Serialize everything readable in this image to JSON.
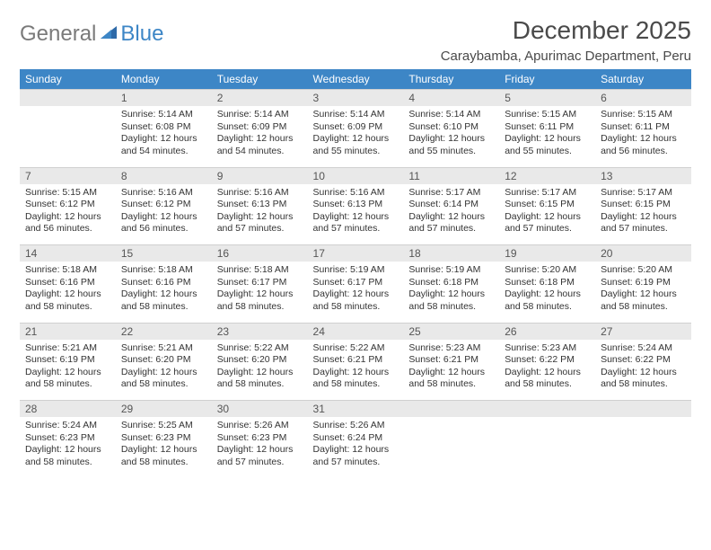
{
  "logo": {
    "general": "General",
    "blue": "Blue"
  },
  "title": "December 2025",
  "location": "Caraybamba, Apurimac Department, Peru",
  "day_headers": [
    "Sunday",
    "Monday",
    "Tuesday",
    "Wednesday",
    "Thursday",
    "Friday",
    "Saturday"
  ],
  "colors": {
    "header_bg": "#3d86c6",
    "header_fg": "#ffffff",
    "daynum_bg": "#e9e9e9",
    "text": "#333333",
    "logo_gray": "#7a7a7a",
    "logo_blue": "#3d86c6"
  },
  "weeks": [
    [
      {
        "n": "",
        "sr": "",
        "ss": "",
        "dl1": "",
        "dl2": ""
      },
      {
        "n": "1",
        "sr": "Sunrise: 5:14 AM",
        "ss": "Sunset: 6:08 PM",
        "dl1": "Daylight: 12 hours",
        "dl2": "and 54 minutes."
      },
      {
        "n": "2",
        "sr": "Sunrise: 5:14 AM",
        "ss": "Sunset: 6:09 PM",
        "dl1": "Daylight: 12 hours",
        "dl2": "and 54 minutes."
      },
      {
        "n": "3",
        "sr": "Sunrise: 5:14 AM",
        "ss": "Sunset: 6:09 PM",
        "dl1": "Daylight: 12 hours",
        "dl2": "and 55 minutes."
      },
      {
        "n": "4",
        "sr": "Sunrise: 5:14 AM",
        "ss": "Sunset: 6:10 PM",
        "dl1": "Daylight: 12 hours",
        "dl2": "and 55 minutes."
      },
      {
        "n": "5",
        "sr": "Sunrise: 5:15 AM",
        "ss": "Sunset: 6:11 PM",
        "dl1": "Daylight: 12 hours",
        "dl2": "and 55 minutes."
      },
      {
        "n": "6",
        "sr": "Sunrise: 5:15 AM",
        "ss": "Sunset: 6:11 PM",
        "dl1": "Daylight: 12 hours",
        "dl2": "and 56 minutes."
      }
    ],
    [
      {
        "n": "7",
        "sr": "Sunrise: 5:15 AM",
        "ss": "Sunset: 6:12 PM",
        "dl1": "Daylight: 12 hours",
        "dl2": "and 56 minutes."
      },
      {
        "n": "8",
        "sr": "Sunrise: 5:16 AM",
        "ss": "Sunset: 6:12 PM",
        "dl1": "Daylight: 12 hours",
        "dl2": "and 56 minutes."
      },
      {
        "n": "9",
        "sr": "Sunrise: 5:16 AM",
        "ss": "Sunset: 6:13 PM",
        "dl1": "Daylight: 12 hours",
        "dl2": "and 57 minutes."
      },
      {
        "n": "10",
        "sr": "Sunrise: 5:16 AM",
        "ss": "Sunset: 6:13 PM",
        "dl1": "Daylight: 12 hours",
        "dl2": "and 57 minutes."
      },
      {
        "n": "11",
        "sr": "Sunrise: 5:17 AM",
        "ss": "Sunset: 6:14 PM",
        "dl1": "Daylight: 12 hours",
        "dl2": "and 57 minutes."
      },
      {
        "n": "12",
        "sr": "Sunrise: 5:17 AM",
        "ss": "Sunset: 6:15 PM",
        "dl1": "Daylight: 12 hours",
        "dl2": "and 57 minutes."
      },
      {
        "n": "13",
        "sr": "Sunrise: 5:17 AM",
        "ss": "Sunset: 6:15 PM",
        "dl1": "Daylight: 12 hours",
        "dl2": "and 57 minutes."
      }
    ],
    [
      {
        "n": "14",
        "sr": "Sunrise: 5:18 AM",
        "ss": "Sunset: 6:16 PM",
        "dl1": "Daylight: 12 hours",
        "dl2": "and 58 minutes."
      },
      {
        "n": "15",
        "sr": "Sunrise: 5:18 AM",
        "ss": "Sunset: 6:16 PM",
        "dl1": "Daylight: 12 hours",
        "dl2": "and 58 minutes."
      },
      {
        "n": "16",
        "sr": "Sunrise: 5:18 AM",
        "ss": "Sunset: 6:17 PM",
        "dl1": "Daylight: 12 hours",
        "dl2": "and 58 minutes."
      },
      {
        "n": "17",
        "sr": "Sunrise: 5:19 AM",
        "ss": "Sunset: 6:17 PM",
        "dl1": "Daylight: 12 hours",
        "dl2": "and 58 minutes."
      },
      {
        "n": "18",
        "sr": "Sunrise: 5:19 AM",
        "ss": "Sunset: 6:18 PM",
        "dl1": "Daylight: 12 hours",
        "dl2": "and 58 minutes."
      },
      {
        "n": "19",
        "sr": "Sunrise: 5:20 AM",
        "ss": "Sunset: 6:18 PM",
        "dl1": "Daylight: 12 hours",
        "dl2": "and 58 minutes."
      },
      {
        "n": "20",
        "sr": "Sunrise: 5:20 AM",
        "ss": "Sunset: 6:19 PM",
        "dl1": "Daylight: 12 hours",
        "dl2": "and 58 minutes."
      }
    ],
    [
      {
        "n": "21",
        "sr": "Sunrise: 5:21 AM",
        "ss": "Sunset: 6:19 PM",
        "dl1": "Daylight: 12 hours",
        "dl2": "and 58 minutes."
      },
      {
        "n": "22",
        "sr": "Sunrise: 5:21 AM",
        "ss": "Sunset: 6:20 PM",
        "dl1": "Daylight: 12 hours",
        "dl2": "and 58 minutes."
      },
      {
        "n": "23",
        "sr": "Sunrise: 5:22 AM",
        "ss": "Sunset: 6:20 PM",
        "dl1": "Daylight: 12 hours",
        "dl2": "and 58 minutes."
      },
      {
        "n": "24",
        "sr": "Sunrise: 5:22 AM",
        "ss": "Sunset: 6:21 PM",
        "dl1": "Daylight: 12 hours",
        "dl2": "and 58 minutes."
      },
      {
        "n": "25",
        "sr": "Sunrise: 5:23 AM",
        "ss": "Sunset: 6:21 PM",
        "dl1": "Daylight: 12 hours",
        "dl2": "and 58 minutes."
      },
      {
        "n": "26",
        "sr": "Sunrise: 5:23 AM",
        "ss": "Sunset: 6:22 PM",
        "dl1": "Daylight: 12 hours",
        "dl2": "and 58 minutes."
      },
      {
        "n": "27",
        "sr": "Sunrise: 5:24 AM",
        "ss": "Sunset: 6:22 PM",
        "dl1": "Daylight: 12 hours",
        "dl2": "and 58 minutes."
      }
    ],
    [
      {
        "n": "28",
        "sr": "Sunrise: 5:24 AM",
        "ss": "Sunset: 6:23 PM",
        "dl1": "Daylight: 12 hours",
        "dl2": "and 58 minutes."
      },
      {
        "n": "29",
        "sr": "Sunrise: 5:25 AM",
        "ss": "Sunset: 6:23 PM",
        "dl1": "Daylight: 12 hours",
        "dl2": "and 58 minutes."
      },
      {
        "n": "30",
        "sr": "Sunrise: 5:26 AM",
        "ss": "Sunset: 6:23 PM",
        "dl1": "Daylight: 12 hours",
        "dl2": "and 57 minutes."
      },
      {
        "n": "31",
        "sr": "Sunrise: 5:26 AM",
        "ss": "Sunset: 6:24 PM",
        "dl1": "Daylight: 12 hours",
        "dl2": "and 57 minutes."
      },
      {
        "n": "",
        "sr": "",
        "ss": "",
        "dl1": "",
        "dl2": ""
      },
      {
        "n": "",
        "sr": "",
        "ss": "",
        "dl1": "",
        "dl2": ""
      },
      {
        "n": "",
        "sr": "",
        "ss": "",
        "dl1": "",
        "dl2": ""
      }
    ]
  ]
}
